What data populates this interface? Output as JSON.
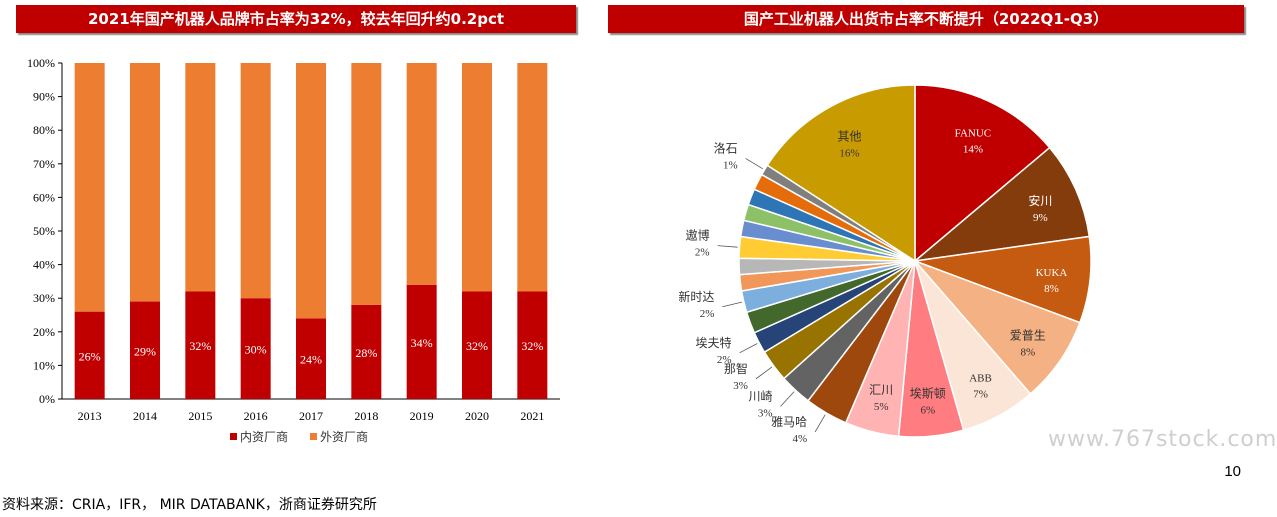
{
  "left_chart": {
    "title": "2021年国产机器人品牌市占率为32%，较去年回升约0.2pct"
  },
  "right_chart": {
    "title": "国产工业机器人出货市占率不断提升（2022Q1-Q3）"
  },
  "footer": {
    "source": "资料来源：CRIA，IFR， MIR DATABANK，浙商证券研究所",
    "page_number": "10",
    "watermark": "www.767stock.com"
  },
  "colors": {
    "title_bg": "#c00000",
    "domestic": "#c00000",
    "foreign": "#ed7d31"
  },
  "chart_data": [
    {
      "type": "bar",
      "stacked": true,
      "title": "2021年国产机器人品牌市占率为32%，较去年回升约0.2pct",
      "categories": [
        "2013",
        "2014",
        "2015",
        "2016",
        "2017",
        "2018",
        "2019",
        "2020",
        "2021"
      ],
      "series": [
        {
          "name": "内资厂商",
          "color": "#c00000",
          "values": [
            26,
            29,
            32,
            30,
            24,
            28,
            34,
            32,
            32
          ],
          "labels": [
            "26%",
            "29%",
            "32%",
            "30%",
            "24%",
            "28%",
            "34%",
            "32%",
            "32%"
          ]
        },
        {
          "name": "外资厂商",
          "color": "#ed7d31",
          "values": [
            74,
            71,
            68,
            70,
            76,
            72,
            66,
            68,
            68
          ]
        }
      ],
      "ylim": [
        0,
        100
      ],
      "yticks": [
        "0%",
        "10%",
        "20%",
        "30%",
        "40%",
        "50%",
        "60%",
        "70%",
        "80%",
        "90%",
        "100%"
      ],
      "legend": "bottom",
      "grid": false
    },
    {
      "type": "pie",
      "title": "国产工业机器人出货市占率不断提升（2022Q1-Q3）",
      "start_angle": "12 o'clock, clockwise",
      "slices": [
        {
          "name": "FANUC",
          "value": 14,
          "label": "14%",
          "color": "#c00000"
        },
        {
          "name": "安川",
          "value": 9,
          "label": "9%",
          "color": "#843c0c"
        },
        {
          "name": "KUKA",
          "value": 8,
          "label": "8%",
          "color": "#c55a11"
        },
        {
          "name": "爱普生",
          "value": 8,
          "label": "8%",
          "color": "#f4b183"
        },
        {
          "name": "ABB",
          "value": 7,
          "label": "7%",
          "color": "#fbe5d6"
        },
        {
          "name": "埃斯顿",
          "value": 6,
          "label": "6%",
          "color": "#ff7c80"
        },
        {
          "name": "汇川",
          "value": 5,
          "label": "5%",
          "color": "#ffb3b3"
        },
        {
          "name": "雅马哈",
          "value": 4,
          "label": "4%",
          "color": "#9e480e"
        },
        {
          "name": "川崎",
          "value": 3,
          "label": "3%",
          "color": "#636363"
        },
        {
          "name": "那智",
          "value": 3,
          "label": "3%",
          "color": "#997300"
        },
        {
          "name": "埃夫特",
          "value": 2,
          "label": "2%",
          "color": "#264478"
        },
        {
          "name": "",
          "value": 2,
          "label": "",
          "color": "#43682b"
        },
        {
          "name": "新时达",
          "value": 2,
          "label": "2%",
          "color": "#7cafdd"
        },
        {
          "name": "",
          "value": 1.5,
          "label": "",
          "color": "#f1975a"
        },
        {
          "name": "",
          "value": 1.5,
          "label": "",
          "color": "#b7b7b7"
        },
        {
          "name": "遨博",
          "value": 2,
          "label": "2%",
          "color": "#ffcd33"
        },
        {
          "name": "",
          "value": 1.5,
          "label": "",
          "color": "#698ed0"
        },
        {
          "name": "",
          "value": 1.5,
          "label": "",
          "color": "#8cc168"
        },
        {
          "name": "",
          "value": 1.5,
          "label": "",
          "color": "#2e75b6"
        },
        {
          "name": "",
          "value": 1.5,
          "label": "",
          "color": "#e46c0a"
        },
        {
          "name": "洛石",
          "value": 1,
          "label": "1%",
          "color": "#7f7f7f"
        },
        {
          "name": "其他",
          "value": 16,
          "label": "16%",
          "color": "#c89b00"
        }
      ]
    }
  ]
}
